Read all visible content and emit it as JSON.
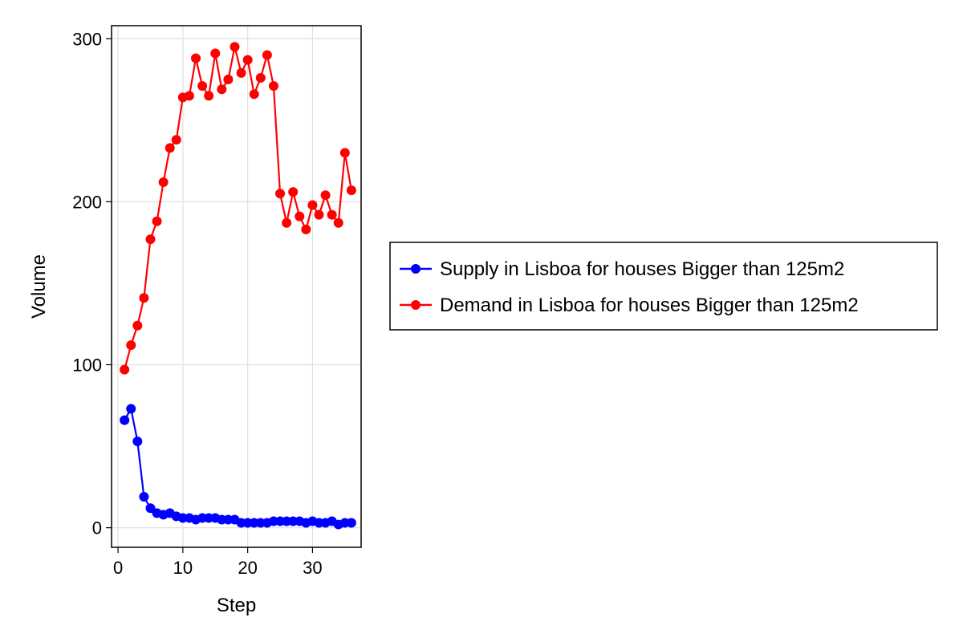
{
  "chart_data": {
    "type": "line",
    "xlabel": "Step",
    "ylabel": "Volume",
    "xlim": [
      -1,
      37.5
    ],
    "ylim": [
      -12,
      308
    ],
    "xticks": [
      0,
      10,
      20,
      30
    ],
    "yticks": [
      0,
      100,
      200,
      300
    ],
    "grid": true,
    "legend_position": "right",
    "x": [
      1,
      2,
      3,
      4,
      5,
      6,
      7,
      8,
      9,
      10,
      11,
      12,
      13,
      14,
      15,
      16,
      17,
      18,
      19,
      20,
      21,
      22,
      23,
      24,
      25,
      26,
      27,
      28,
      29,
      30,
      31,
      32,
      33,
      34,
      35,
      36
    ],
    "series": [
      {
        "name": "Supply in Lisboa for houses Bigger than 125m2",
        "color": "#0000ff",
        "values": [
          66,
          73,
          53,
          19,
          12,
          9,
          8,
          9,
          7,
          6,
          6,
          5,
          6,
          6,
          6,
          5,
          5,
          5,
          3,
          3,
          3,
          3,
          3,
          4,
          4,
          4,
          4,
          4,
          3,
          4,
          3,
          3,
          4,
          2,
          3,
          3
        ]
      },
      {
        "name": "Demand in Lisboa for houses Bigger than 125m2",
        "color": "#ff0000",
        "values": [
          97,
          112,
          124,
          141,
          177,
          188,
          212,
          233,
          238,
          264,
          265,
          288,
          271,
          265,
          291,
          269,
          275,
          295,
          279,
          287,
          266,
          276,
          290,
          271,
          205,
          187,
          206,
          191,
          183,
          198,
          192,
          204,
          192,
          187,
          230,
          207
        ]
      }
    ]
  }
}
